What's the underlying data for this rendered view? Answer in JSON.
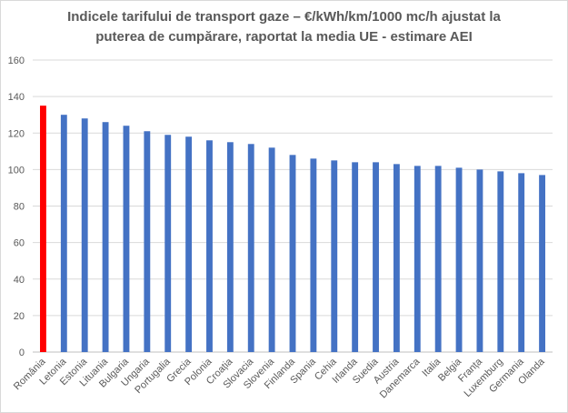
{
  "chart_data": {
    "type": "bar",
    "title_line1": "Indicele tarifului de transport gaze – €/kWh/km/1000 mc/h ajustat la",
    "title_line2": "puterea de cumpărare, raportat la media UE -  estimare AEI",
    "categories": [
      "România",
      "Letonia",
      "Estonia",
      "Lituania",
      "Bulgaria",
      "Ungaria",
      "Portugalia",
      "Grecia",
      "Polonia",
      "Croația",
      "Slovacia",
      "Slovenia",
      "Finlanda",
      "Spania",
      "Cehia",
      "Irlanda",
      "Suedia",
      "Austria",
      "Danemarca",
      "Italia",
      "Belgia",
      "Franța",
      "Luxemburg",
      "Germania",
      "Olanda"
    ],
    "values": [
      135,
      130,
      128,
      126,
      124,
      121,
      119,
      118,
      116,
      115,
      114,
      112,
      108,
      106,
      105,
      104,
      104,
      103,
      102,
      102,
      101,
      100,
      99,
      98,
      97
    ],
    "ylim": [
      0,
      160
    ],
    "yticks": [
      0,
      20,
      40,
      60,
      80,
      100,
      120,
      140,
      160
    ],
    "grid": true,
    "bar_color": "#4472c4",
    "highlight_color": "#ff0000",
    "highlight_index": 0
  }
}
